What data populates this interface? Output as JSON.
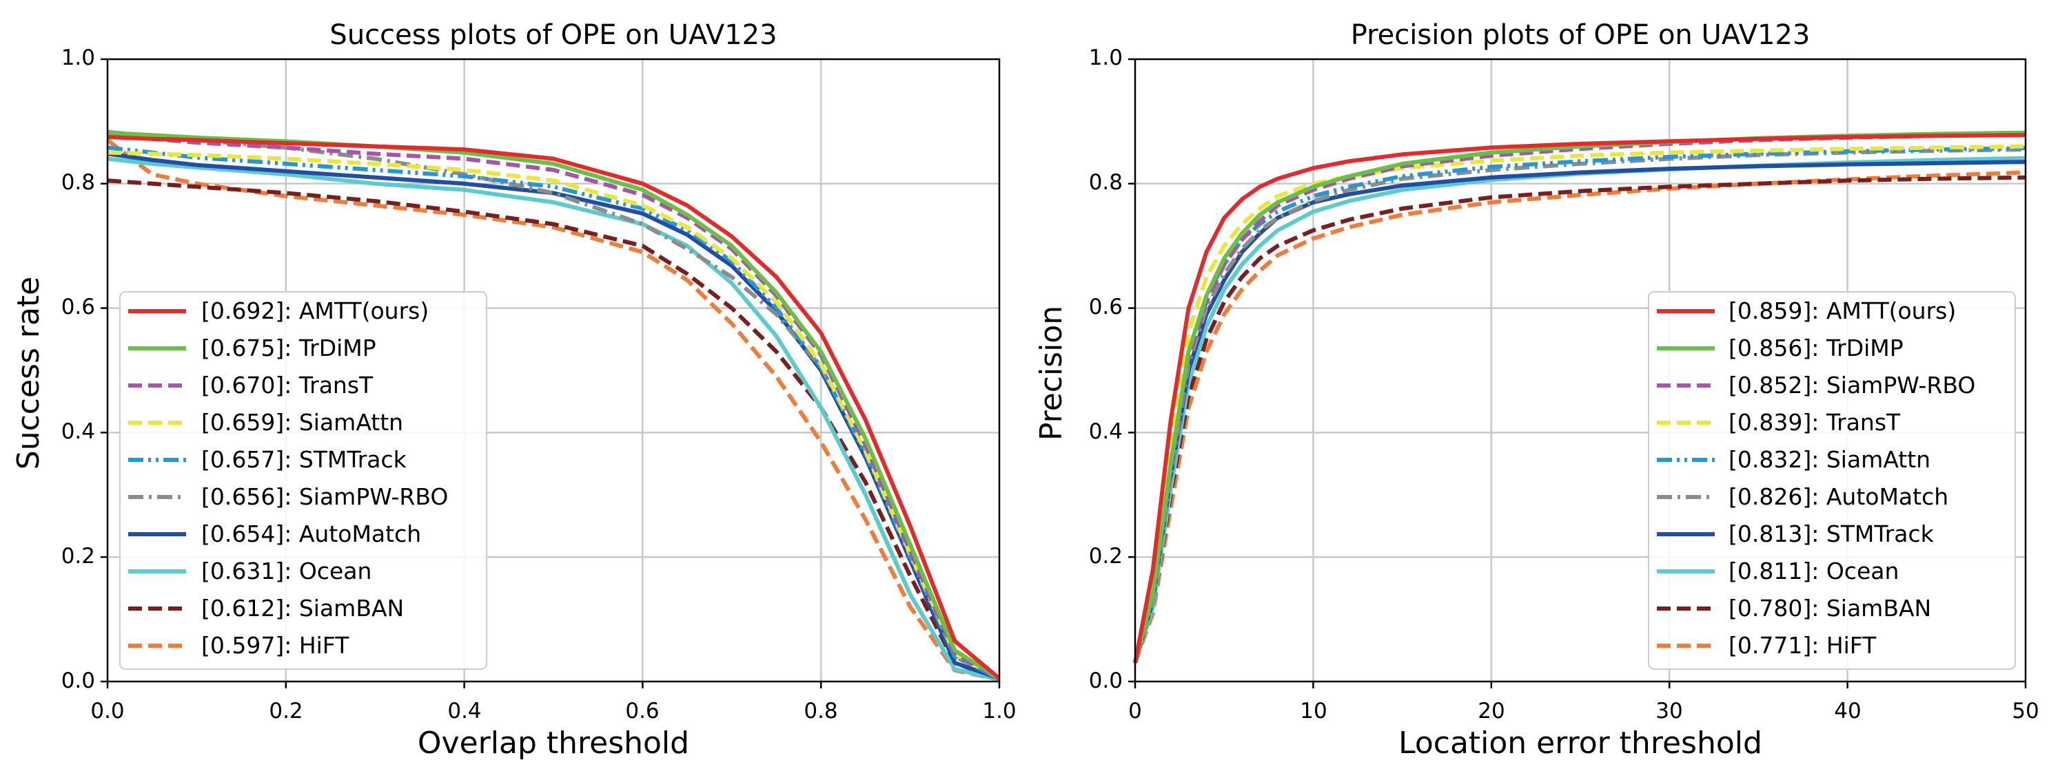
{
  "chart_data": [
    {
      "type": "line",
      "title": "Success plots of OPE on UAV123",
      "xlabel": "Overlap threshold",
      "ylabel": "Success rate",
      "xlim": [
        0,
        1
      ],
      "ylim": [
        0,
        1
      ],
      "xticks": [
        "0.0",
        "0.2",
        "0.4",
        "0.6",
        "0.8",
        "1.0"
      ],
      "yticks": [
        "0.0",
        "0.2",
        "0.4",
        "0.6",
        "0.8",
        "1.0"
      ],
      "grid": true,
      "legend_position": "lower-left",
      "x": [
        0,
        0.05,
        0.1,
        0.2,
        0.3,
        0.4,
        0.5,
        0.6,
        0.65,
        0.7,
        0.75,
        0.8,
        0.85,
        0.9,
        0.95,
        1.0
      ],
      "series": [
        {
          "name": "[0.692]: AMTT(ours)",
          "color": "#e32b2b",
          "dash": "solid",
          "values": [
            0.875,
            0.872,
            0.87,
            0.865,
            0.86,
            0.855,
            0.84,
            0.8,
            0.765,
            0.715,
            0.65,
            0.56,
            0.42,
            0.25,
            0.065,
            0.005
          ]
        },
        {
          "name": "[0.675]: TrDiMP",
          "color": "#6abf45",
          "dash": "solid",
          "values": [
            0.882,
            0.878,
            0.874,
            0.868,
            0.86,
            0.85,
            0.832,
            0.79,
            0.75,
            0.7,
            0.625,
            0.53,
            0.39,
            0.22,
            0.05,
            0.005
          ]
        },
        {
          "name": "[0.670]: TransT",
          "color": "#a457a8",
          "dash": "dash",
          "values": [
            0.878,
            0.872,
            0.866,
            0.858,
            0.848,
            0.84,
            0.822,
            0.782,
            0.745,
            0.695,
            0.62,
            0.525,
            0.38,
            0.21,
            0.045,
            0.005
          ]
        },
        {
          "name": "[0.659]: SiamAttn",
          "color": "#e8e83a",
          "dash": "dash",
          "values": [
            0.85,
            0.848,
            0.846,
            0.84,
            0.832,
            0.822,
            0.805,
            0.765,
            0.73,
            0.68,
            0.61,
            0.51,
            0.37,
            0.205,
            0.045,
            0.005
          ]
        },
        {
          "name": "[0.657]: STMTrack",
          "color": "#2596d6",
          "dash": "dashdotdot",
          "values": [
            0.858,
            0.85,
            0.842,
            0.832,
            0.822,
            0.812,
            0.795,
            0.76,
            0.725,
            0.675,
            0.6,
            0.505,
            0.365,
            0.2,
            0.04,
            0.005
          ]
        },
        {
          "name": "[0.656]: SiamPW-RBO",
          "color": "#8c8c8c",
          "dash": "dashdot",
          "values": [
            0.883,
            0.877,
            0.87,
            0.858,
            0.84,
            0.815,
            0.785,
            0.735,
            0.695,
            0.65,
            0.59,
            0.505,
            0.37,
            0.205,
            0.04,
            0.005
          ]
        },
        {
          "name": "[0.654]: AutoMatch",
          "color": "#1f4ea3",
          "dash": "solid",
          "values": [
            0.848,
            0.838,
            0.83,
            0.82,
            0.81,
            0.8,
            0.785,
            0.752,
            0.718,
            0.668,
            0.595,
            0.5,
            0.36,
            0.195,
            0.03,
            0.005
          ]
        },
        {
          "name": "[0.631]: Ocean",
          "color": "#5ccbd0",
          "dash": "solid",
          "values": [
            0.84,
            0.832,
            0.826,
            0.815,
            0.8,
            0.79,
            0.77,
            0.735,
            0.7,
            0.64,
            0.555,
            0.44,
            0.3,
            0.14,
            0.02,
            0.003
          ]
        },
        {
          "name": "[0.612]: SiamBAN",
          "color": "#7a1e1e",
          "dash": "dash",
          "values": [
            0.805,
            0.8,
            0.795,
            0.785,
            0.772,
            0.755,
            0.735,
            0.7,
            0.655,
            0.6,
            0.53,
            0.44,
            0.32,
            0.17,
            0.03,
            0.003
          ]
        },
        {
          "name": "[0.597]: HiFT",
          "color": "#f07c3a",
          "dash": "dash",
          "values": [
            0.87,
            0.815,
            0.8,
            0.78,
            0.765,
            0.75,
            0.73,
            0.69,
            0.645,
            0.575,
            0.49,
            0.385,
            0.26,
            0.12,
            0.018,
            0.003
          ]
        }
      ]
    },
    {
      "type": "line",
      "title": "Precision plots of OPE on UAV123",
      "xlabel": "Location error threshold",
      "ylabel": "Precision",
      "xlim": [
        0,
        50
      ],
      "ylim": [
        0,
        1
      ],
      "xticks": [
        "0",
        "10",
        "20",
        "30",
        "40",
        "50"
      ],
      "yticks": [
        "0.0",
        "0.2",
        "0.4",
        "0.6",
        "0.8",
        "1.0"
      ],
      "grid": true,
      "legend_position": "lower-right",
      "x": [
        0,
        1,
        2,
        3,
        4,
        5,
        6,
        7,
        8,
        10,
        12,
        15,
        20,
        25,
        30,
        35,
        40,
        45,
        50
      ],
      "series": [
        {
          "name": "[0.859]: AMTT(ours)",
          "color": "#e32b2b",
          "dash": "solid",
          "values": [
            0.03,
            0.18,
            0.42,
            0.6,
            0.69,
            0.745,
            0.775,
            0.795,
            0.808,
            0.825,
            0.836,
            0.847,
            0.858,
            0.864,
            0.868,
            0.872,
            0.875,
            0.877,
            0.878
          ]
        },
        {
          "name": "[0.856]: TrDiMP",
          "color": "#6abf45",
          "dash": "solid",
          "values": [
            0.03,
            0.14,
            0.35,
            0.53,
            0.62,
            0.68,
            0.72,
            0.75,
            0.77,
            0.795,
            0.812,
            0.832,
            0.85,
            0.86,
            0.867,
            0.873,
            0.877,
            0.88,
            0.882
          ]
        },
        {
          "name": "[0.852]: SiamPW-RBO",
          "color": "#a457a8",
          "dash": "dash",
          "values": [
            0.03,
            0.14,
            0.34,
            0.52,
            0.61,
            0.67,
            0.71,
            0.74,
            0.765,
            0.79,
            0.808,
            0.828,
            0.845,
            0.856,
            0.864,
            0.87,
            0.874,
            0.877,
            0.879
          ]
        },
        {
          "name": "[0.839]: TransT",
          "color": "#e8e83a",
          "dash": "dash",
          "values": [
            0.03,
            0.15,
            0.38,
            0.56,
            0.65,
            0.7,
            0.735,
            0.76,
            0.78,
            0.8,
            0.812,
            0.825,
            0.837,
            0.845,
            0.85,
            0.853,
            0.856,
            0.858,
            0.86
          ]
        },
        {
          "name": "[0.832]: SiamAttn",
          "color": "#2596d6",
          "dash": "dashdotdot",
          "values": [
            0.03,
            0.14,
            0.35,
            0.53,
            0.62,
            0.67,
            0.71,
            0.735,
            0.755,
            0.78,
            0.795,
            0.812,
            0.827,
            0.836,
            0.843,
            0.848,
            0.852,
            0.855,
            0.857
          ]
        },
        {
          "name": "[0.826]: AutoMatch",
          "color": "#8c8c8c",
          "dash": "dashdot",
          "values": [
            0.03,
            0.13,
            0.33,
            0.51,
            0.6,
            0.655,
            0.695,
            0.725,
            0.745,
            0.772,
            0.79,
            0.808,
            0.822,
            0.832,
            0.84,
            0.846,
            0.85,
            0.853,
            0.855
          ]
        },
        {
          "name": "[0.813]: STMTrack",
          "color": "#1f4ea3",
          "dash": "solid",
          "values": [
            0.03,
            0.13,
            0.33,
            0.5,
            0.59,
            0.645,
            0.69,
            0.72,
            0.745,
            0.77,
            0.783,
            0.797,
            0.81,
            0.818,
            0.824,
            0.828,
            0.831,
            0.833,
            0.835
          ]
        },
        {
          "name": "[0.811]: Ocean",
          "color": "#5ccbd0",
          "dash": "solid",
          "values": [
            0.03,
            0.12,
            0.31,
            0.48,
            0.57,
            0.63,
            0.67,
            0.7,
            0.725,
            0.755,
            0.772,
            0.79,
            0.806,
            0.816,
            0.823,
            0.829,
            0.834,
            0.838,
            0.841
          ]
        },
        {
          "name": "[0.780]: SiamBAN",
          "color": "#7a1e1e",
          "dash": "dash",
          "values": [
            0.03,
            0.12,
            0.3,
            0.46,
            0.55,
            0.61,
            0.65,
            0.68,
            0.7,
            0.725,
            0.742,
            0.76,
            0.778,
            0.788,
            0.795,
            0.8,
            0.805,
            0.808,
            0.81
          ]
        },
        {
          "name": "[0.771]: HiFT",
          "color": "#f07c3a",
          "dash": "dash",
          "values": [
            0.03,
            0.11,
            0.28,
            0.44,
            0.53,
            0.59,
            0.63,
            0.66,
            0.685,
            0.712,
            0.73,
            0.75,
            0.77,
            0.782,
            0.792,
            0.8,
            0.807,
            0.813,
            0.818
          ]
        }
      ]
    }
  ]
}
